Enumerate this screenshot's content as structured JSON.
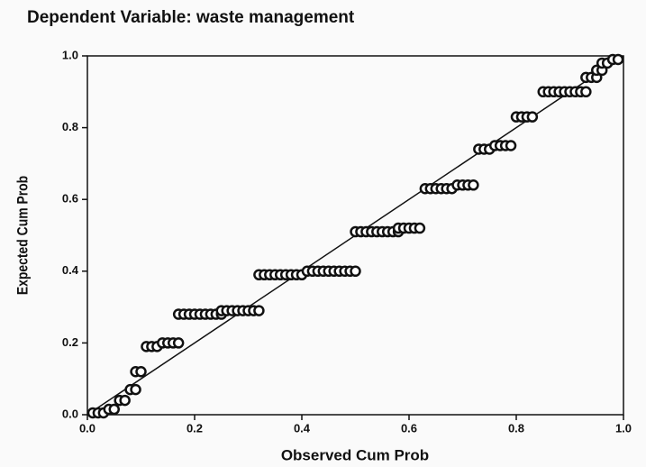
{
  "chart_data": {
    "type": "scatter",
    "title": "Dependent Variable: waste management",
    "xlabel": "Observed Cum Prob",
    "ylabel": "Expected Cum Prob",
    "xlim": [
      0,
      1
    ],
    "ylim": [
      0,
      1
    ],
    "xticks": [
      {
        "value": 0,
        "label": "0.0"
      },
      0.2,
      0.4,
      0.6,
      0.8,
      {
        "value": 1,
        "label": "1.0"
      }
    ],
    "yticks": [
      {
        "value": 0,
        "label": "0.0"
      },
      0.2,
      0.4,
      0.6,
      0.8,
      {
        "value": 1,
        "label": "1.0"
      }
    ],
    "grid": false,
    "reference_line": true,
    "series": [
      {
        "color": "#111111",
        "x": [
          0.01,
          0.02,
          0.03,
          0.04,
          0.05,
          0.06,
          0.07,
          0.08,
          0.09,
          0.09,
          0.1,
          0.11,
          0.12,
          0.13,
          0.14,
          0.15,
          0.16,
          0.17,
          0.17,
          0.18,
          0.19,
          0.2,
          0.21,
          0.22,
          0.23,
          0.24,
          0.25,
          0.25,
          0.26,
          0.27,
          0.28,
          0.29,
          0.3,
          0.31,
          0.32,
          0.32,
          0.33,
          0.34,
          0.35,
          0.36,
          0.37,
          0.38,
          0.39,
          0.4,
          0.41,
          0.42,
          0.43,
          0.44,
          0.45,
          0.46,
          0.47,
          0.48,
          0.49,
          0.5,
          0.5,
          0.51,
          0.52,
          0.53,
          0.54,
          0.55,
          0.56,
          0.57,
          0.58,
          0.58,
          0.59,
          0.6,
          0.61,
          0.62,
          0.63,
          0.64,
          0.65,
          0.66,
          0.67,
          0.68,
          0.69,
          0.7,
          0.71,
          0.72,
          0.73,
          0.74,
          0.75,
          0.76,
          0.77,
          0.78,
          0.79,
          0.8,
          0.81,
          0.82,
          0.83,
          0.85,
          0.86,
          0.87,
          0.88,
          0.89,
          0.9,
          0.91,
          0.92,
          0.93,
          0.93,
          0.94,
          0.95,
          0.95,
          0.96,
          0.96,
          0.97,
          0.98,
          0.99
        ],
        "y": [
          0.005,
          0.005,
          0.005,
          0.015,
          0.015,
          0.04,
          0.04,
          0.07,
          0.07,
          0.12,
          0.12,
          0.19,
          0.19,
          0.19,
          0.2,
          0.2,
          0.2,
          0.2,
          0.28,
          0.28,
          0.28,
          0.28,
          0.28,
          0.28,
          0.28,
          0.28,
          0.28,
          0.29,
          0.29,
          0.29,
          0.29,
          0.29,
          0.29,
          0.29,
          0.29,
          0.39,
          0.39,
          0.39,
          0.39,
          0.39,
          0.39,
          0.39,
          0.39,
          0.39,
          0.4,
          0.4,
          0.4,
          0.4,
          0.4,
          0.4,
          0.4,
          0.4,
          0.4,
          0.4,
          0.51,
          0.51,
          0.51,
          0.51,
          0.51,
          0.51,
          0.51,
          0.51,
          0.51,
          0.52,
          0.52,
          0.52,
          0.52,
          0.52,
          0.63,
          0.63,
          0.63,
          0.63,
          0.63,
          0.63,
          0.64,
          0.64,
          0.64,
          0.64,
          0.74,
          0.74,
          0.74,
          0.75,
          0.75,
          0.75,
          0.75,
          0.83,
          0.83,
          0.83,
          0.83,
          0.9,
          0.9,
          0.9,
          0.9,
          0.9,
          0.9,
          0.9,
          0.9,
          0.9,
          0.94,
          0.94,
          0.94,
          0.96,
          0.96,
          0.98,
          0.98,
          0.99,
          0.99
        ]
      }
    ]
  }
}
